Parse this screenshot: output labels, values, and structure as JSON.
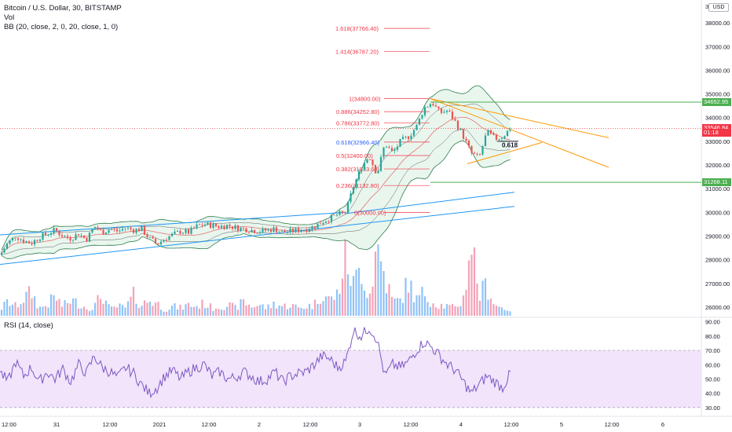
{
  "header": {
    "symbol_line": "Bitcoin / U.S. Dollar, 30, BITSTAMP",
    "vol_label": "Vol",
    "bb_label": "BB (20, close, 2, 0, 20, close, 1, 0)",
    "currency": "USD",
    "rsi_label": "RSI (14, close)"
  },
  "colors": {
    "up": "#26a69a",
    "down": "#ef5350",
    "vol_up": "#8fc3f7",
    "vol_down": "#f4a2b7",
    "bb_band": "#2e7d4f",
    "bb_fill": "#bfe5cf",
    "trend_blue": "#2196f3",
    "trend_orange": "#ff9800",
    "fib": "#f23645",
    "rsi_line": "#7e57c2",
    "rsi_band": "#f1e4fb",
    "level_green": "#4caf50"
  },
  "price_axis": {
    "labels": [
      "38000.00",
      "37000.00",
      "36000.00",
      "35000.00",
      "34000.00",
      "33000.00",
      "32000.00",
      "31000.00",
      "30000.00",
      "29000.00",
      "28000.00",
      "27000.00",
      "26000.00"
    ],
    "top_label": "3",
    "tags": [
      {
        "text": "34652.95",
        "style": "green",
        "price": 34652.95
      },
      {
        "text": "33546.84",
        "style": "red",
        "price": 33546.84
      },
      {
        "text": "01:18",
        "style": "red",
        "price": 33350
      },
      {
        "text": "31268.11",
        "style": "green",
        "price": 31268.11
      }
    ]
  },
  "rsi_axis": {
    "labels": [
      "90.00",
      "80.00",
      "70.00",
      "60.00",
      "50.00",
      "40.00",
      "30.00"
    ]
  },
  "time_axis": {
    "labels": [
      "12:00",
      "31",
      "12:00",
      "2021",
      "12:00",
      "2",
      "12:00",
      "3",
      "12:00",
      "4",
      "12:00",
      "5",
      "12:00",
      "6"
    ]
  },
  "fibonacci": [
    {
      "ratio": 1.618,
      "label": "1.618(37766.40)",
      "price": 37766.4
    },
    {
      "ratio": 1.414,
      "label": "1.414(36787.20)",
      "price": 36787.2
    },
    {
      "ratio": 1,
      "label": "1(34800.00)",
      "price": 34800
    },
    {
      "ratio": 0.886,
      "label": "0.886(34252.80)",
      "price": 34252.8
    },
    {
      "ratio": 0.786,
      "label": "0.786(33772.80)",
      "price": 33772.8
    },
    {
      "ratio": 0.618,
      "label": "0.618(32966.40)",
      "price": 32966.4
    },
    {
      "ratio": 0.5,
      "label": "0.5(32400.00)",
      "price": 32400
    },
    {
      "ratio": 0.382,
      "label": "0.382(31833.60)",
      "price": 31833.6
    },
    {
      "ratio": 0.236,
      "label": "0.236(31132.80)",
      "price": 31132.8
    },
    {
      "ratio": 0,
      "label": "0(30000.00)",
      "price": 30000
    }
  ],
  "annotation": "0.618",
  "chart_data": {
    "type": "candlestick",
    "symbol": "BTCUSD",
    "interval": "30",
    "exchange": "BITSTAMP",
    "ylim": [
      25700,
      38700
    ],
    "rsi_ylim": [
      25,
      92
    ],
    "rsi_band": [
      30,
      70
    ],
    "x_ticks": [
      "12:00",
      "31",
      "12:00",
      "2021",
      "12:00",
      "2",
      "12:00",
      "3",
      "12:00",
      "4",
      "12:00",
      "5",
      "12:00",
      "6"
    ],
    "price_path": [
      [
        0,
        28200
      ],
      [
        10,
        28700
      ],
      [
        20,
        29000
      ],
      [
        30,
        28800
      ],
      [
        40,
        28700
      ],
      [
        50,
        28950
      ],
      [
        60,
        29100
      ],
      [
        70,
        29250
      ],
      [
        80,
        29000
      ],
      [
        90,
        28900
      ],
      [
        100,
        29100
      ],
      [
        110,
        28850
      ],
      [
        120,
        29400
      ],
      [
        130,
        29150
      ],
      [
        140,
        29300
      ],
      [
        150,
        29200
      ],
      [
        160,
        29350
      ],
      [
        170,
        29250
      ],
      [
        180,
        29300
      ],
      [
        190,
        28900
      ],
      [
        200,
        28650
      ],
      [
        210,
        28900
      ],
      [
        220,
        29050
      ],
      [
        230,
        29200
      ],
      [
        240,
        29150
      ],
      [
        250,
        29400
      ],
      [
        260,
        29500
      ],
      [
        270,
        29450
      ],
      [
        280,
        29400
      ],
      [
        290,
        29450
      ],
      [
        300,
        29350
      ],
      [
        310,
        29300
      ],
      [
        320,
        29250
      ],
      [
        330,
        29200
      ],
      [
        340,
        29250
      ],
      [
        350,
        29300
      ],
      [
        360,
        29150
      ],
      [
        370,
        29200
      ],
      [
        380,
        29250
      ],
      [
        390,
        29300
      ],
      [
        400,
        29400
      ],
      [
        410,
        29600
      ],
      [
        420,
        29750
      ],
      [
        430,
        29900
      ],
      [
        440,
        30000
      ],
      [
        450,
        31100
      ],
      [
        460,
        31900
      ],
      [
        470,
        32400
      ],
      [
        480,
        31600
      ],
      [
        490,
        32900
      ],
      [
        500,
        32500
      ],
      [
        510,
        33000
      ],
      [
        520,
        33200
      ],
      [
        530,
        33600
      ],
      [
        540,
        34400
      ],
      [
        550,
        34650
      ],
      [
        560,
        34200
      ],
      [
        570,
        34300
      ],
      [
        580,
        33800
      ],
      [
        590,
        33200
      ],
      [
        600,
        32500
      ],
      [
        610,
        32300
      ],
      [
        620,
        33400
      ],
      [
        630,
        33100
      ],
      [
        640,
        33200
      ],
      [
        650,
        33546.84
      ]
    ],
    "rsi_path": [
      [
        0,
        55
      ],
      [
        10,
        48
      ],
      [
        20,
        62
      ],
      [
        30,
        52
      ],
      [
        40,
        58
      ],
      [
        50,
        48
      ],
      [
        60,
        55
      ],
      [
        70,
        50
      ],
      [
        80,
        57
      ],
      [
        90,
        48
      ],
      [
        100,
        60
      ],
      [
        110,
        54
      ],
      [
        120,
        66
      ],
      [
        130,
        58
      ],
      [
        140,
        55
      ],
      [
        150,
        51
      ],
      [
        160,
        58
      ],
      [
        170,
        54
      ],
      [
        180,
        46
      ],
      [
        190,
        40
      ],
      [
        200,
        44
      ],
      [
        210,
        52
      ],
      [
        220,
        56
      ],
      [
        230,
        50
      ],
      [
        240,
        55
      ],
      [
        250,
        58
      ],
      [
        260,
        60
      ],
      [
        270,
        52
      ],
      [
        280,
        55
      ],
      [
        290,
        50
      ],
      [
        300,
        51
      ],
      [
        310,
        55
      ],
      [
        320,
        52
      ],
      [
        330,
        48
      ],
      [
        340,
        50
      ],
      [
        350,
        55
      ],
      [
        360,
        48
      ],
      [
        370,
        52
      ],
      [
        380,
        54
      ],
      [
        390,
        55
      ],
      [
        400,
        60
      ],
      [
        410,
        66
      ],
      [
        420,
        64
      ],
      [
        430,
        58
      ],
      [
        440,
        62
      ],
      [
        450,
        84
      ],
      [
        460,
        80
      ],
      [
        470,
        86
      ],
      [
        480,
        78
      ],
      [
        490,
        52
      ],
      [
        500,
        60
      ],
      [
        510,
        58
      ],
      [
        520,
        62
      ],
      [
        530,
        70
      ],
      [
        540,
        76
      ],
      [
        550,
        72
      ],
      [
        560,
        66
      ],
      [
        570,
        60
      ],
      [
        580,
        56
      ],
      [
        590,
        48
      ],
      [
        600,
        40
      ],
      [
        610,
        46
      ],
      [
        620,
        52
      ],
      [
        630,
        48
      ],
      [
        640,
        44
      ],
      [
        650,
        54
      ]
    ],
    "volume_path": [
      [
        0,
        8
      ],
      [
        10,
        18
      ],
      [
        20,
        12
      ],
      [
        30,
        22
      ],
      [
        40,
        30
      ],
      [
        50,
        10
      ],
      [
        60,
        14
      ],
      [
        70,
        25
      ],
      [
        80,
        12
      ],
      [
        90,
        20
      ],
      [
        100,
        16
      ],
      [
        110,
        10
      ],
      [
        120,
        12
      ],
      [
        130,
        28
      ],
      [
        140,
        8
      ],
      [
        150,
        12
      ],
      [
        160,
        10
      ],
      [
        170,
        26
      ],
      [
        180,
        14
      ],
      [
        190,
        20
      ],
      [
        200,
        16
      ],
      [
        210,
        8
      ],
      [
        220,
        12
      ],
      [
        230,
        10
      ],
      [
        240,
        14
      ],
      [
        250,
        12
      ],
      [
        260,
        16
      ],
      [
        270,
        10
      ],
      [
        280,
        12
      ],
      [
        290,
        14
      ],
      [
        300,
        10
      ],
      [
        310,
        18
      ],
      [
        320,
        12
      ],
      [
        330,
        14
      ],
      [
        340,
        10
      ],
      [
        350,
        16
      ],
      [
        360,
        12
      ],
      [
        370,
        14
      ],
      [
        380,
        10
      ],
      [
        390,
        12
      ],
      [
        400,
        14
      ],
      [
        410,
        30
      ],
      [
        420,
        20
      ],
      [
        430,
        28
      ],
      [
        440,
        74
      ],
      [
        450,
        40
      ],
      [
        460,
        64
      ],
      [
        470,
        22
      ],
      [
        480,
        90
      ],
      [
        490,
        50
      ],
      [
        500,
        18
      ],
      [
        510,
        20
      ],
      [
        520,
        44
      ],
      [
        530,
        20
      ],
      [
        540,
        30
      ],
      [
        550,
        18
      ],
      [
        560,
        14
      ],
      [
        570,
        12
      ],
      [
        580,
        10
      ],
      [
        590,
        22
      ],
      [
        600,
        100
      ],
      [
        610,
        26
      ],
      [
        620,
        40
      ],
      [
        630,
        14
      ],
      [
        640,
        10
      ],
      [
        650,
        8
      ]
    ],
    "levels": [
      34652.95,
      31268.11
    ]
  }
}
